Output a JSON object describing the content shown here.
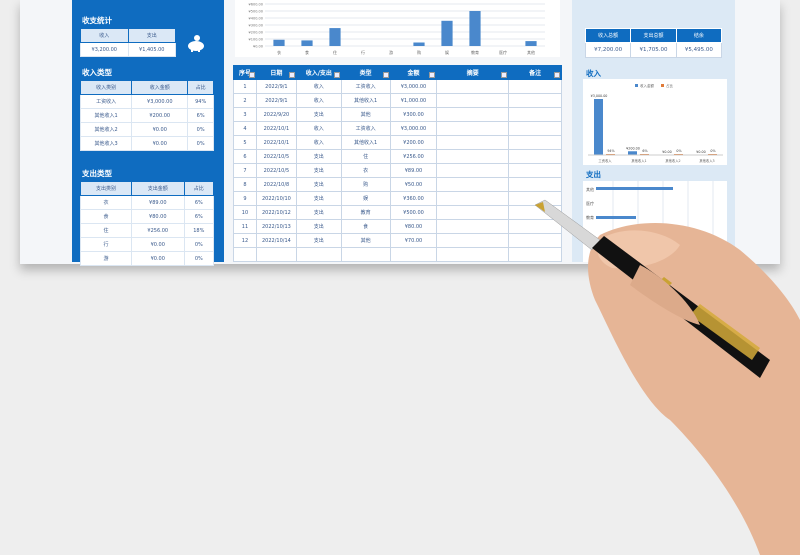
{
  "left": {
    "summary_title": "收支统计",
    "summary_headers": [
      "收入",
      "支出"
    ],
    "summary_values": [
      "¥3,200.00",
      "¥1,405.00"
    ],
    "income_title": "收入类型",
    "income_headers": [
      "收入类别",
      "收入金额",
      "占比"
    ],
    "income_rows": [
      [
        "工资收入",
        "¥3,000.00",
        "94%"
      ],
      [
        "其他收入1",
        "¥200.00",
        "6%"
      ],
      [
        "其他收入2",
        "¥0.00",
        "0%"
      ],
      [
        "其他收入3",
        "¥0.00",
        "0%"
      ]
    ],
    "expense_title": "支出类型",
    "expense_headers": [
      "支出类别",
      "支出金额",
      "占比"
    ],
    "expense_rows": [
      [
        "衣",
        "¥89.00",
        "6%"
      ],
      [
        "食",
        "¥80.00",
        "6%"
      ],
      [
        "住",
        "¥256.00",
        "18%"
      ],
      [
        "行",
        "¥0.00",
        "0%"
      ],
      [
        "游",
        "¥0.00",
        "0%"
      ]
    ]
  },
  "table": {
    "headers": [
      "序号",
      "日期",
      "收入/支出",
      "类型",
      "金额",
      "摘要",
      "备注"
    ],
    "rows": [
      [
        "1",
        "2022/9/1",
        "收入",
        "工资收入",
        "¥3,000.00",
        "",
        ""
      ],
      [
        "2",
        "2022/9/1",
        "收入",
        "其他收入1",
        "¥1,000.00",
        "",
        ""
      ],
      [
        "3",
        "2022/9/20",
        "支出",
        "其他",
        "¥300.00",
        "",
        ""
      ],
      [
        "4",
        "2022/10/1",
        "收入",
        "工资收入",
        "¥3,000.00",
        "",
        ""
      ],
      [
        "5",
        "2022/10/1",
        "收入",
        "其他收入1",
        "¥200.00",
        "",
        ""
      ],
      [
        "6",
        "2022/10/5",
        "支出",
        "住",
        "¥256.00",
        "",
        ""
      ],
      [
        "7",
        "2022/10/5",
        "支出",
        "衣",
        "¥89.00",
        "",
        ""
      ],
      [
        "8",
        "2022/10/8",
        "支出",
        "购",
        "¥50.00",
        "",
        ""
      ],
      [
        "9",
        "2022/10/10",
        "支出",
        "娱",
        "¥360.00",
        "",
        ""
      ],
      [
        "10",
        "2022/10/12",
        "支出",
        "教育",
        "¥500.00",
        "",
        ""
      ],
      [
        "11",
        "2022/10/13",
        "支出",
        "食",
        "¥80.00",
        "",
        ""
      ],
      [
        "12",
        "2022/10/14",
        "支出",
        "其他",
        "¥70.00",
        "",
        ""
      ],
      [
        "",
        "",
        "",
        "",
        "",
        "",
        ""
      ]
    ]
  },
  "right": {
    "totals_headers": [
      "收入总额",
      "支出总额",
      "结余"
    ],
    "totals_values": [
      "¥7,200.00",
      "¥1,705.00",
      "¥5,495.00"
    ],
    "income_title": "收入",
    "expense_title": "支出",
    "expense_bar_labels": [
      "其他",
      "医疗",
      "教育"
    ]
  },
  "chart_data": [
    {
      "type": "bar",
      "categories": [
        "衣",
        "食",
        "住",
        "行",
        "游",
        "购",
        "娱",
        "教育",
        "医疗",
        "其他"
      ],
      "values": [
        89,
        80,
        256,
        0,
        0,
        50,
        360,
        500,
        0,
        70
      ],
      "yticks": [
        "¥0.00",
        "¥100.00",
        "¥200.00",
        "¥300.00",
        "¥400.00",
        "¥500.00",
        "¥600.00"
      ],
      "ylim": [
        0,
        600
      ],
      "grid": true
    },
    {
      "type": "bar",
      "categories": [
        "工资收入",
        "其他收入1",
        "其他收入2",
        "其他收入3"
      ],
      "series": [
        {
          "name": "收入金额",
          "values": [
            3000,
            200,
            0,
            0
          ],
          "labels": [
            "¥3,000.00",
            "¥200.00",
            "¥0.00",
            "¥0.00"
          ]
        },
        {
          "name": "占比",
          "values": [
            94,
            6,
            0,
            0
          ],
          "labels": [
            "94%",
            "6%",
            "0%",
            "0%"
          ]
        }
      ],
      "legend": "top",
      "colors": [
        "#4a88cc",
        "#e07b39"
      ]
    }
  ],
  "colors": {
    "accent": "#0f6cc0",
    "panel": "#dce9f5"
  }
}
